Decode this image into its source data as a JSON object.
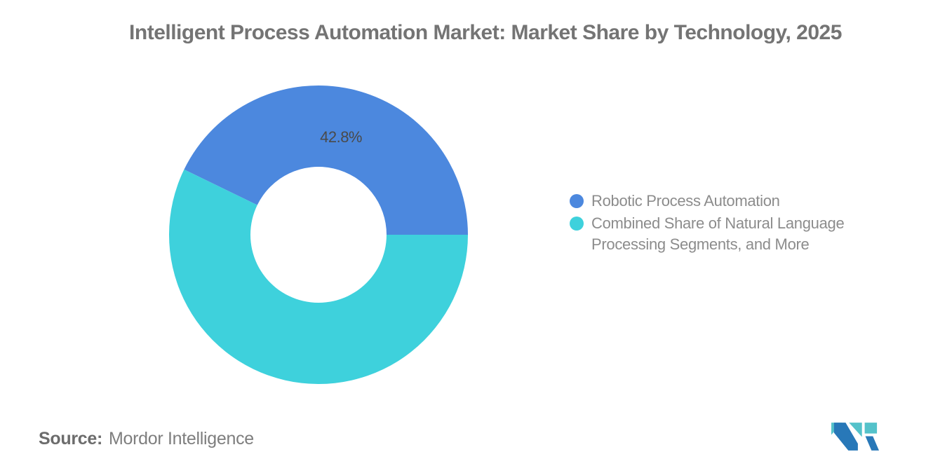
{
  "title": "Intelligent Process Automation Market: Market Share by Technology, 2025",
  "source": {
    "label": "Source:",
    "value": "Mordor Intelligence"
  },
  "logo": {
    "teal": "#54C2CA",
    "blue": "#2878B8"
  },
  "chart_data": {
    "type": "pie",
    "donut": true,
    "title": "Intelligent Process Automation Market: Market Share by Technology, 2025",
    "start_angle_deg": 0,
    "direction": "counterclockwise",
    "inner_radius_ratio": 0.455,
    "label_radius_ratio": 0.67,
    "label_color": "#4A4A4A",
    "legend_position": "right",
    "series": [
      {
        "name": "Robotic Process Automation",
        "value": 42.8,
        "color": "#4C88DE",
        "label": "42.8%"
      },
      {
        "name": "Combined Share of Natural Language Processing Segments, and More",
        "value": 57.2,
        "color": "#3ED1DC",
        "label": ""
      }
    ]
  }
}
